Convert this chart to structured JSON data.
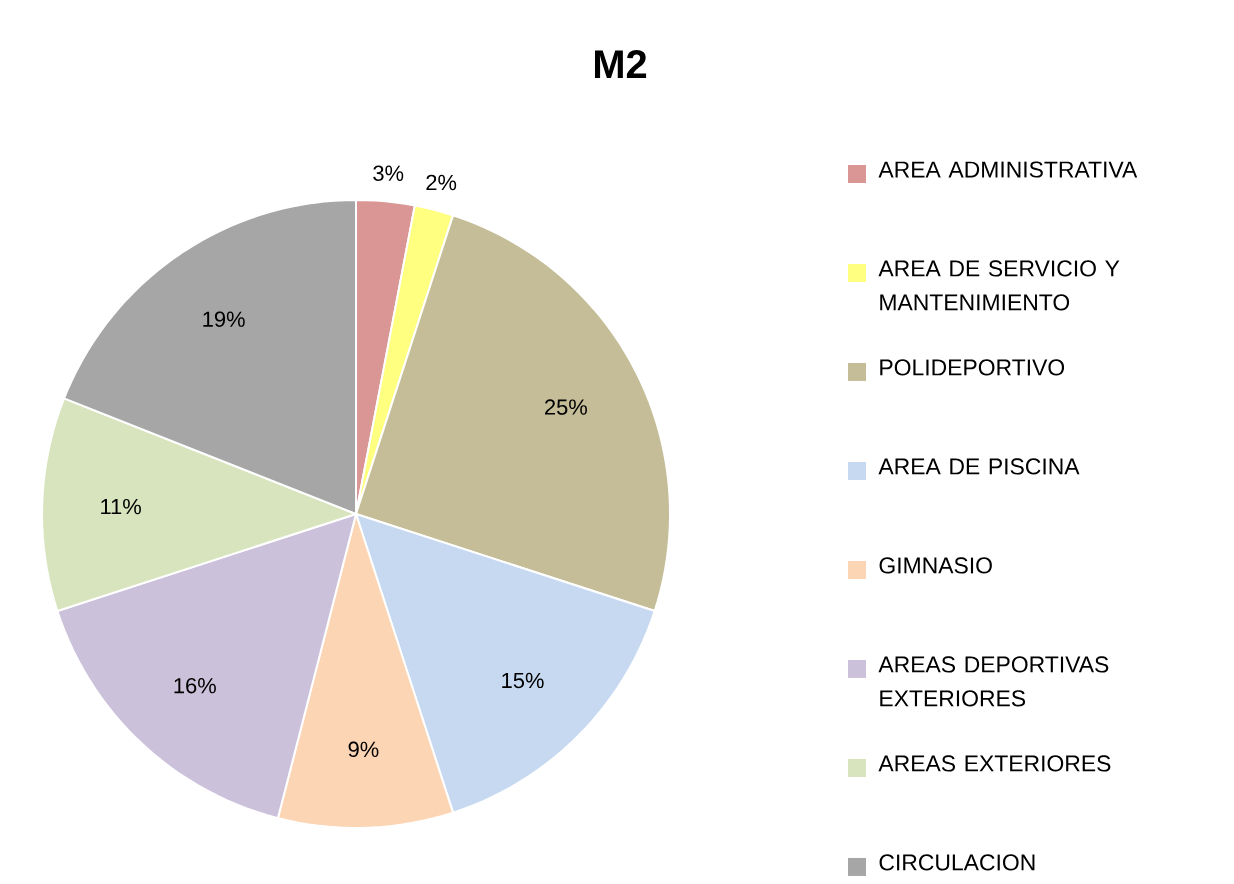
{
  "chart_data": {
    "type": "pie",
    "title": "M2",
    "categories": [
      "AREA ADMINISTRATIVA",
      "AREA DE SERVICIO Y MANTENIMIENTO",
      "POLIDEPORTIVO",
      "AREA DE PISCINA",
      "GIMNASIO",
      "AREAS DEPORTIVAS EXTERIORES",
      "AREAS EXTERIORES",
      "CIRCULACION"
    ],
    "values": [
      3,
      2,
      25,
      15,
      9,
      16,
      11,
      19
    ],
    "value_labels": [
      "3%",
      "2%",
      "25%",
      "15%",
      "9%",
      "16%",
      "11%",
      "19%"
    ],
    "colors": [
      "#d99694",
      "#ffff80",
      "#c4bd97",
      "#c6d9f1",
      "#fcd5b5",
      "#ccc1da",
      "#d7e4bd",
      "#a6a6a6"
    ],
    "legend": "right"
  }
}
